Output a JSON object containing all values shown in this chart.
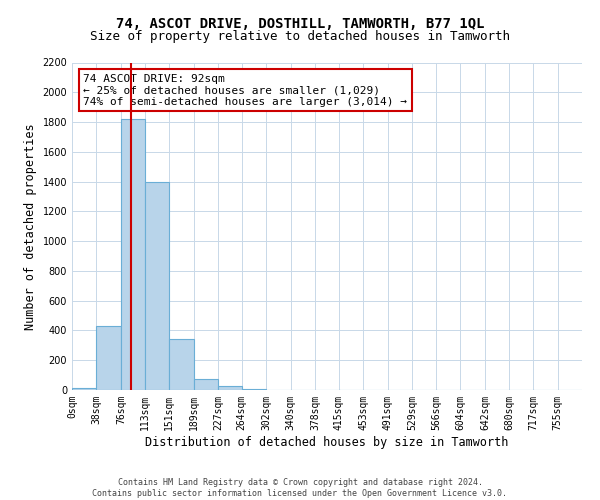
{
  "title": "74, ASCOT DRIVE, DOSTHILL, TAMWORTH, B77 1QL",
  "subtitle": "Size of property relative to detached houses in Tamworth",
  "xlabel": "Distribution of detached houses by size in Tamworth",
  "ylabel": "Number of detached properties",
  "bar_labels": [
    "0sqm",
    "38sqm",
    "76sqm",
    "113sqm",
    "151sqm",
    "189sqm",
    "227sqm",
    "264sqm",
    "302sqm",
    "340sqm",
    "378sqm",
    "415sqm",
    "453sqm",
    "491sqm",
    "529sqm",
    "566sqm",
    "604sqm",
    "642sqm",
    "680sqm",
    "717sqm",
    "755sqm"
  ],
  "bar_values": [
    15,
    430,
    1820,
    1400,
    340,
    75,
    25,
    5,
    0,
    0,
    0,
    0,
    0,
    0,
    0,
    0,
    0,
    0,
    0,
    0,
    0
  ],
  "bar_color": "#b8d4ea",
  "bar_edge_color": "#6aaed6",
  "property_line_x": 92,
  "bin_edges": [
    0,
    38,
    76,
    113,
    151,
    189,
    227,
    264,
    302,
    340,
    378,
    415,
    453,
    491,
    529,
    566,
    604,
    642,
    680,
    717,
    755
  ],
  "bin_width": 38,
  "xlim_max": 793,
  "ylim": [
    0,
    2200
  ],
  "yticks": [
    0,
    200,
    400,
    600,
    800,
    1000,
    1200,
    1400,
    1600,
    1800,
    2000,
    2200
  ],
  "vline_color": "#cc0000",
  "annotation_text": "74 ASCOT DRIVE: 92sqm\n← 25% of detached houses are smaller (1,029)\n74% of semi-detached houses are larger (3,014) →",
  "annotation_box_color": "#ffffff",
  "annotation_box_edge": "#cc0000",
  "footer_line1": "Contains HM Land Registry data © Crown copyright and database right 2024.",
  "footer_line2": "Contains public sector information licensed under the Open Government Licence v3.0.",
  "background_color": "#ffffff",
  "grid_color": "#c8d8e8",
  "title_fontsize": 10,
  "subtitle_fontsize": 9,
  "xlabel_fontsize": 8.5,
  "ylabel_fontsize": 8.5,
  "tick_fontsize": 7,
  "annotation_fontsize": 8,
  "footer_fontsize": 6
}
